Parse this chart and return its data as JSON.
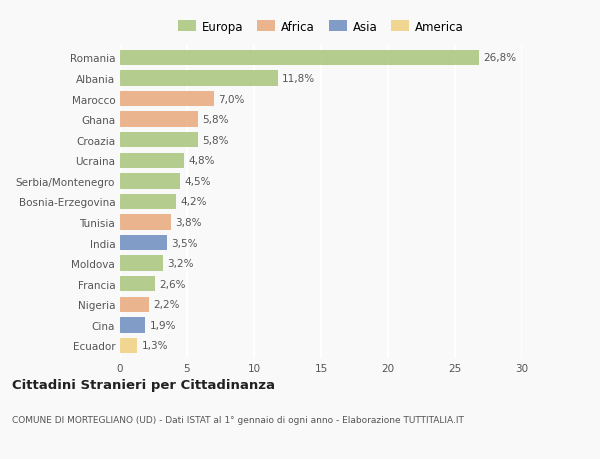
{
  "countries": [
    "Romania",
    "Albania",
    "Marocco",
    "Ghana",
    "Croazia",
    "Ucraina",
    "Serbia/Montenegro",
    "Bosnia-Erzegovina",
    "Tunisia",
    "India",
    "Moldova",
    "Francia",
    "Nigeria",
    "Cina",
    "Ecuador"
  ],
  "values": [
    26.8,
    11.8,
    7.0,
    5.8,
    5.8,
    4.8,
    4.5,
    4.2,
    3.8,
    3.5,
    3.2,
    2.6,
    2.2,
    1.9,
    1.3
  ],
  "labels": [
    "26,8%",
    "11,8%",
    "7,0%",
    "5,8%",
    "5,8%",
    "4,8%",
    "4,5%",
    "4,2%",
    "3,8%",
    "3,5%",
    "3,2%",
    "2,6%",
    "2,2%",
    "1,9%",
    "1,3%"
  ],
  "continents": [
    "Europa",
    "Europa",
    "Africa",
    "Africa",
    "Europa",
    "Europa",
    "Europa",
    "Europa",
    "Africa",
    "Asia",
    "Europa",
    "Europa",
    "Africa",
    "Asia",
    "America"
  ],
  "colors": {
    "Europa": "#a8c57a",
    "Africa": "#e8a87c",
    "Asia": "#6b8cbf",
    "America": "#f0d080"
  },
  "xlim": [
    0,
    30
  ],
  "xticks": [
    0,
    5,
    10,
    15,
    20,
    25,
    30
  ],
  "title": "Cittadini Stranieri per Cittadinanza",
  "subtitle": "COMUNE DI MORTEGLIANO (UD) - Dati ISTAT al 1° gennaio di ogni anno - Elaborazione TUTTITALIA.IT",
  "background_color": "#f9f9f9",
  "grid_color": "#ffffff",
  "bar_height": 0.75,
  "label_fontsize": 7.5,
  "tick_fontsize": 7.5,
  "legend_fontsize": 8.5,
  "title_fontsize": 9.5,
  "subtitle_fontsize": 6.5
}
